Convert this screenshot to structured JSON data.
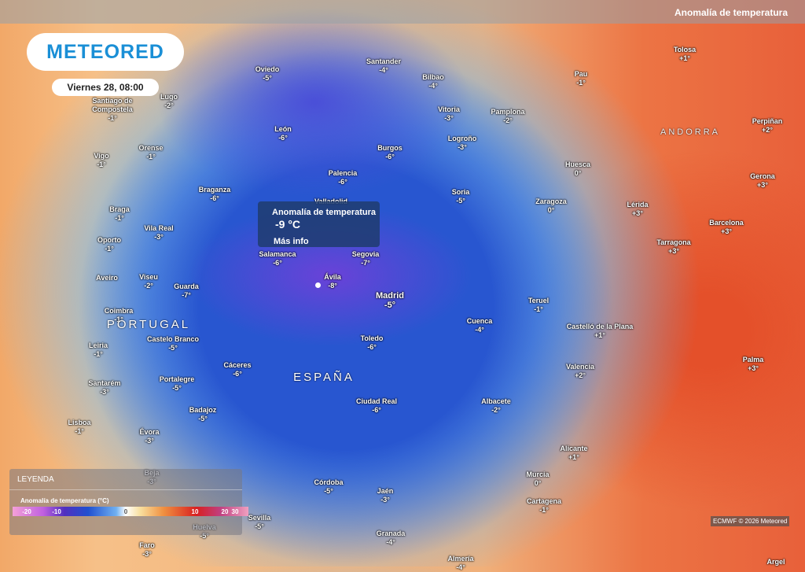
{
  "header": {
    "brand": "METEORED",
    "date": "Viernes 28, 08:00",
    "layer": "Anomalía de temperatura"
  },
  "tooltip": {
    "title": "Anomalía de temperatura",
    "value": "-9 °C",
    "link": "Más info"
  },
  "countries": [
    "PORTUGAL",
    "ESPAÑA",
    "ANDORRA"
  ],
  "cities": [
    {
      "name": "Oviedo",
      "value": "-5°"
    },
    {
      "name": "Santander",
      "value": "-4°"
    },
    {
      "name": "Bilbao",
      "value": "-4°"
    },
    {
      "name": "Pau",
      "value": "-1°"
    },
    {
      "name": "Tolosa",
      "value": "+1°"
    },
    {
      "name": "Lugo",
      "value": "-2°"
    },
    {
      "name": "Santiago de Compostela",
      "value": "-1°"
    },
    {
      "name": "Vitoria",
      "value": "-3°"
    },
    {
      "name": "Pamplona",
      "value": "-2°"
    },
    {
      "name": "Perpiñan",
      "value": "+2°"
    },
    {
      "name": "León",
      "value": "-6°"
    },
    {
      "name": "Logroño",
      "value": "-3°"
    },
    {
      "name": "Orense",
      "value": "-1°"
    },
    {
      "name": "Burgos",
      "value": "-6°"
    },
    {
      "name": "Vigo",
      "value": "-1°"
    },
    {
      "name": "Huesca",
      "value": "0°"
    },
    {
      "name": "Palencia",
      "value": "-6°"
    },
    {
      "name": "Gerona",
      "value": "+3°"
    },
    {
      "name": "Braganza",
      "value": "-6°"
    },
    {
      "name": "Soria",
      "value": "-5°"
    },
    {
      "name": "Valladolid",
      "value": null
    },
    {
      "name": "Zaragoza",
      "value": "0°"
    },
    {
      "name": "Braga",
      "value": "-1°"
    },
    {
      "name": "Lérida",
      "value": "+3°"
    },
    {
      "name": "Vila Real",
      "value": "-3°"
    },
    {
      "name": "Barcelona",
      "value": "+3°"
    },
    {
      "name": "Oporto",
      "value": "-1°"
    },
    {
      "name": "Tarragona",
      "value": "+3°"
    },
    {
      "name": "Salamanca",
      "value": "-6°"
    },
    {
      "name": "Segovia",
      "value": "-7°"
    },
    {
      "name": "Aveiro",
      "value": null
    },
    {
      "name": "Viseu",
      "value": "-2°"
    },
    {
      "name": "Ávila",
      "value": "-8°"
    },
    {
      "name": "Guarda",
      "value": "-7°"
    },
    {
      "name": "Madrid",
      "value": "-5°"
    },
    {
      "name": "Teruel",
      "value": "-1°"
    },
    {
      "name": "Coimbra",
      "value": "-1°"
    },
    {
      "name": "Cuenca",
      "value": "-4°"
    },
    {
      "name": "Castelo Branco",
      "value": "-5°"
    },
    {
      "name": "Castelló de la Plana",
      "value": "+1°"
    },
    {
      "name": "Toledo",
      "value": "-6°"
    },
    {
      "name": "Leiria",
      "value": "-1°"
    },
    {
      "name": "Palma",
      "value": "+3°"
    },
    {
      "name": "Valencia",
      "value": "+2°"
    },
    {
      "name": "Cáceres",
      "value": "-6°"
    },
    {
      "name": "Portalegre",
      "value": "-5°"
    },
    {
      "name": "Santarém",
      "value": "-3°"
    },
    {
      "name": "Ciudad Real",
      "value": "-6°"
    },
    {
      "name": "Albacete",
      "value": "-2°"
    },
    {
      "name": "Badajoz",
      "value": "-5°"
    },
    {
      "name": "Lisboa",
      "value": "-1°"
    },
    {
      "name": "Évora",
      "value": "-3°"
    },
    {
      "name": "Alicante",
      "value": "+1°"
    },
    {
      "name": "Beja",
      "value": "-3°"
    },
    {
      "name": "Murcia",
      "value": "0°"
    },
    {
      "name": "Córdoba",
      "value": "-5°"
    },
    {
      "name": "Jaén",
      "value": "-3°"
    },
    {
      "name": "Cartagena",
      "value": "-1°"
    },
    {
      "name": "Sevilla",
      "value": "-5°"
    },
    {
      "name": "Huelva",
      "value": "-5°"
    },
    {
      "name": "Granada",
      "value": "-4°"
    },
    {
      "name": "Faro",
      "value": "-3°"
    },
    {
      "name": "Almería",
      "value": "-4°"
    },
    {
      "name": "Argel",
      "value": null
    }
  ],
  "legend": {
    "title": "LEYENDA",
    "scale_title": "Anomalía de temperatura (°C)",
    "ticks": [
      -20,
      -10,
      0,
      10,
      20,
      30
    ]
  },
  "credit": "ECMWF © 2026 Meteored"
}
